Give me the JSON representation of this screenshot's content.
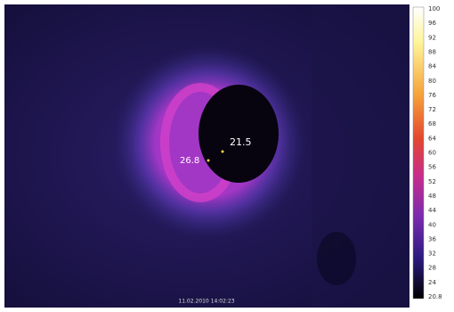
{
  "image": {
    "spots": [
      {
        "label": "21.5"
      },
      {
        "label": "26.8"
      }
    ],
    "timestamp": "11.02.2010 14:02:23"
  },
  "scale": {
    "labels": [
      "100",
      "96",
      "92",
      "88",
      "84",
      "80",
      "76",
      "72",
      "68",
      "64",
      "60",
      "56",
      "52",
      "48",
      "44",
      "40",
      "36",
      "32",
      "28",
      "24",
      "20.8"
    ]
  }
}
